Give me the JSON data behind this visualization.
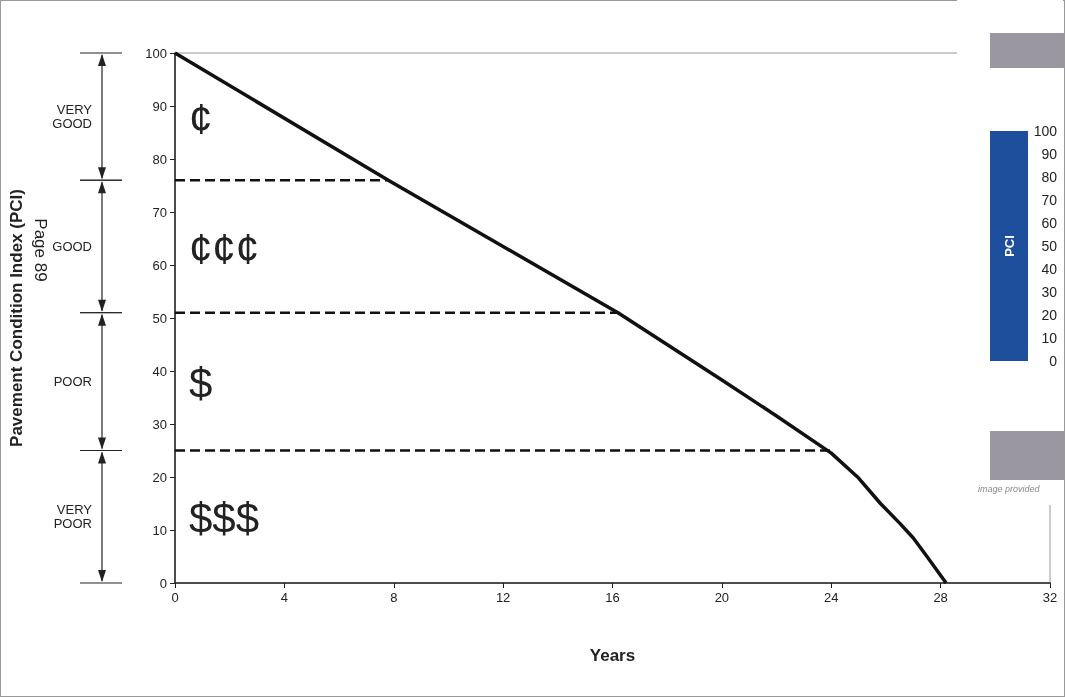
{
  "chart_data": [
    {
      "type": "line",
      "xlabel": "Years",
      "ylabel": "Pavement Condition Index (PCI)",
      "xlim": [
        0,
        32
      ],
      "xticks": [
        0,
        4,
        8,
        12,
        16,
        20,
        24,
        28,
        32
      ],
      "ylim": [
        0,
        100
      ],
      "yticks": [
        0,
        10,
        20,
        30,
        40,
        50,
        60,
        70,
        80,
        90,
        100
      ],
      "grid": false,
      "marker": "none",
      "series": [
        {
          "color": "#111111",
          "line_style": "solid",
          "x": [
            0,
            7.8,
            16.2,
            20,
            22,
            24,
            25,
            25.8,
            26.5,
            27,
            27.5,
            28.2
          ],
          "values": [
            100,
            76,
            51,
            38.3,
            31.5,
            24.5,
            19.8,
            15,
            11.3,
            8.5,
            5,
            0
          ]
        },
        {
          "color": "#111111",
          "line_style": "dashed",
          "x": [
            0,
            7.8
          ],
          "values": [
            76,
            76
          ]
        },
        {
          "color": "#111111",
          "line_style": "dashed",
          "x": [
            0,
            16.2
          ],
          "values": [
            51,
            51
          ]
        },
        {
          "color": "#111111",
          "line_style": "dashed",
          "x": [
            0,
            24
          ],
          "values": [
            25,
            25
          ]
        }
      ],
      "annotations": [
        "VERY\nGOOD",
        "GOOD",
        "POOR",
        "VERY\nPOOR",
        "¢",
        "¢¢¢",
        "$",
        "$$$",
        "Page 89"
      ]
    },
    {
      "type": "bar",
      "categories": [
        "PCI"
      ],
      "values": [
        100
      ],
      "color": "#1d4f9c",
      "ylim": [
        0,
        100
      ],
      "yticks": [
        0,
        10,
        20,
        30,
        40,
        50,
        60,
        70,
        80,
        90,
        100
      ],
      "annotations": [
        "image provided"
      ]
    }
  ]
}
